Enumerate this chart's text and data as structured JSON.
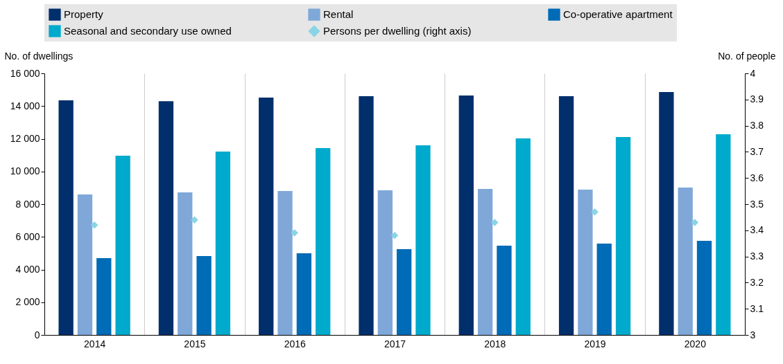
{
  "chart_data": {
    "type": "bar",
    "ylabel": "No. of dwellings",
    "y2label": "No. of people",
    "categories": [
      "2014",
      "2015",
      "2016",
      "2017",
      "2018",
      "2019",
      "2020"
    ],
    "series": [
      {
        "name": "Property",
        "color": "#002f6c",
        "values": [
          14350,
          14300,
          14520,
          14600,
          14650,
          14600,
          14860
        ]
      },
      {
        "name": "Rental",
        "color": "#7fa8d9",
        "values": [
          8590,
          8720,
          8800,
          8850,
          8930,
          8890,
          9020
        ]
      },
      {
        "name": "Co-operative apartment",
        "color": "#006bb6",
        "values": [
          4700,
          4830,
          4990,
          5250,
          5460,
          5590,
          5760
        ]
      },
      {
        "name": "Seasonal and secondary use owned",
        "color": "#00aacc",
        "values": [
          10960,
          11220,
          11430,
          11600,
          12020,
          12110,
          12280
        ]
      },
      {
        "name": "Persons per dwelling (right axis)",
        "color": "#8ad4e6",
        "type": "scatter",
        "axis": "y2",
        "marker": "diamond",
        "values": [
          3.42,
          3.44,
          3.39,
          3.38,
          3.43,
          3.47,
          3.43
        ]
      }
    ],
    "ylim": [
      0,
      16000
    ],
    "yticks": [
      0,
      2000,
      4000,
      6000,
      8000,
      10000,
      12000,
      14000,
      16000
    ],
    "y2lim": [
      3,
      4
    ],
    "y2ticks": [
      3,
      3.1,
      3.2,
      3.3,
      3.4,
      3.5,
      3.6,
      3.7,
      3.8,
      3.9,
      4
    ],
    "grid": "x",
    "legend": "top"
  }
}
